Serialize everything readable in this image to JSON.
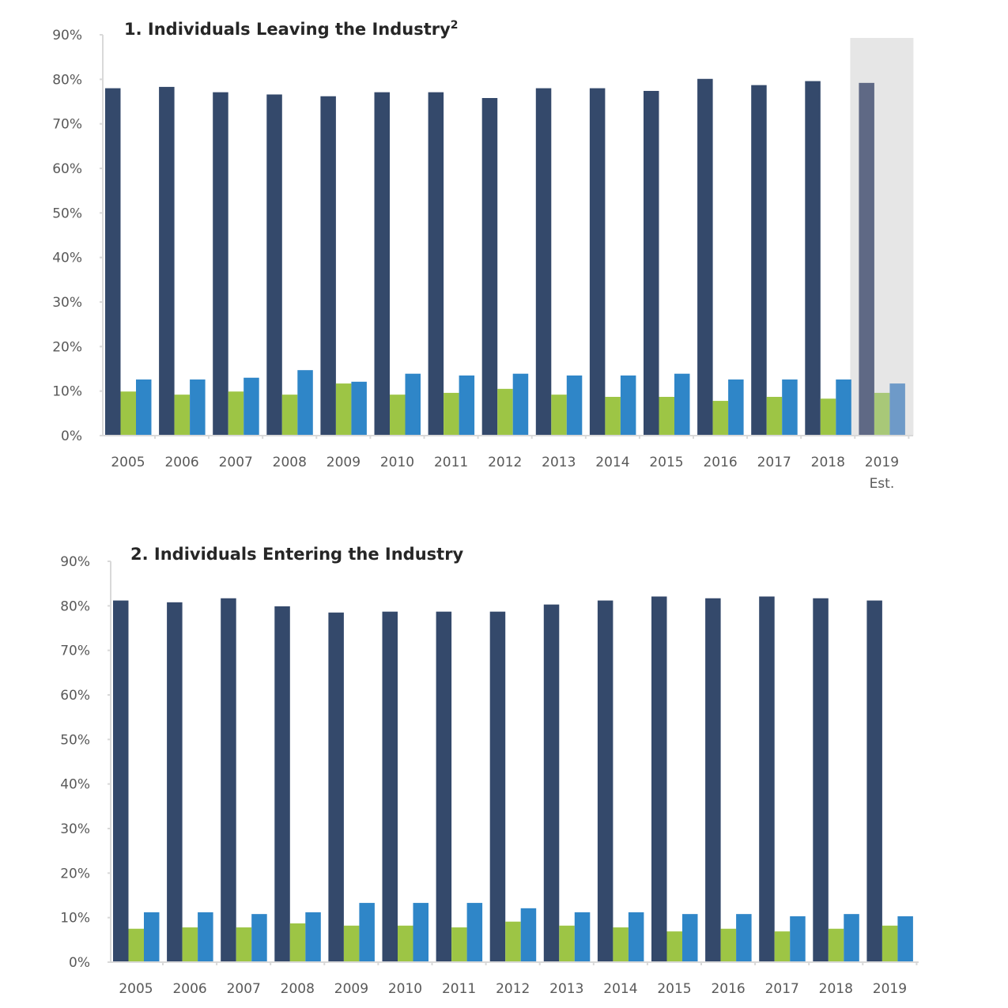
{
  "chart_data": [
    {
      "type": "bar",
      "title": "1. Individuals Leaving the Industry",
      "title_superscript": "2",
      "categories": [
        "2005",
        "2006",
        "2007",
        "2008",
        "2009",
        "2010",
        "2011",
        "2012",
        "2013",
        "2014",
        "2015",
        "2016",
        "2017",
        "2018",
        "2019"
      ],
      "category_sublabels": {
        "2019": "Est."
      },
      "highlighted_category": "2019",
      "ylim": [
        0,
        90
      ],
      "yticks": [
        "0%",
        "10%",
        "20%",
        "30%",
        "40%",
        "50%",
        "60%",
        "70%",
        "80%",
        "90%"
      ],
      "unit": "%",
      "grid": false,
      "series": [
        {
          "color": "#34496b",
          "values": [
            78.0,
            78.3,
            77.1,
            76.6,
            76.2,
            77.1,
            77.1,
            75.8,
            78.0,
            78.0,
            77.4,
            80.1,
            78.7,
            79.6,
            79.2
          ]
        },
        {
          "color": "#9dc545",
          "values": [
            9.9,
            9.2,
            9.9,
            9.2,
            11.7,
            9.2,
            9.6,
            10.5,
            9.2,
            8.7,
            8.7,
            7.8,
            8.7,
            8.3,
            9.6
          ]
        },
        {
          "color": "#2f86c8",
          "values": [
            12.6,
            12.6,
            13.0,
            14.7,
            12.1,
            13.9,
            13.5,
            13.9,
            13.5,
            13.5,
            13.9,
            12.6,
            12.6,
            12.6,
            11.7
          ]
        }
      ]
    },
    {
      "type": "bar",
      "title": "2. Individuals Entering the Industry",
      "categories": [
        "2005",
        "2006",
        "2007",
        "2008",
        "2009",
        "2010",
        "2011",
        "2012",
        "2013",
        "2014",
        "2015",
        "2016",
        "2017",
        "2018",
        "2019"
      ],
      "ylim": [
        0,
        90
      ],
      "yticks": [
        "0%",
        "10%",
        "20%",
        "30%",
        "40%",
        "50%",
        "60%",
        "70%",
        "80%",
        "90%"
      ],
      "unit": "%",
      "grid": false,
      "series": [
        {
          "color": "#34496b",
          "values": [
            81.2,
            80.8,
            81.7,
            79.9,
            78.5,
            78.7,
            78.7,
            78.7,
            80.3,
            81.2,
            82.1,
            81.7,
            82.1,
            81.7,
            81.2
          ]
        },
        {
          "color": "#9dc545",
          "values": [
            7.5,
            7.8,
            7.8,
            8.7,
            8.2,
            8.2,
            7.8,
            9.1,
            8.2,
            7.8,
            6.9,
            7.5,
            6.9,
            7.5,
            8.2
          ]
        },
        {
          "color": "#2f86c8",
          "values": [
            11.2,
            11.2,
            10.8,
            11.2,
            13.3,
            13.3,
            13.3,
            12.1,
            11.2,
            11.2,
            10.8,
            10.8,
            10.3,
            10.8,
            10.3
          ]
        }
      ]
    }
  ],
  "highlight_colors": {
    "shade": "#e6e6e6",
    "series": [
      "#5f6985",
      "#a8c878",
      "#6e9ac8"
    ]
  }
}
